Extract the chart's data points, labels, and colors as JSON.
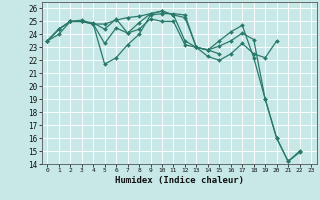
{
  "title": "",
  "xlabel": "Humidex (Indice chaleur)",
  "xlim": [
    -0.5,
    23.5
  ],
  "ylim": [
    14,
    26.5
  ],
  "yticks": [
    14,
    15,
    16,
    17,
    18,
    19,
    20,
    21,
    22,
    23,
    24,
    25,
    26
  ],
  "xticks": [
    0,
    1,
    2,
    3,
    4,
    5,
    6,
    7,
    8,
    9,
    10,
    11,
    12,
    13,
    14,
    15,
    16,
    17,
    18,
    19,
    20,
    21,
    22,
    23
  ],
  "line_color": "#2a7a6a",
  "bg_color": "#c8e8e8",
  "grid_color": "#b0d8d8",
  "lines": [
    {
      "x": [
        0,
        1,
        2,
        3,
        4,
        5,
        6,
        7,
        8,
        9,
        10,
        11,
        12,
        13,
        14,
        15,
        16,
        17,
        18,
        19,
        20,
        21,
        22
      ],
      "y": [
        23.5,
        24.4,
        25.0,
        25.0,
        24.8,
        21.7,
        22.2,
        23.2,
        24.0,
        25.5,
        25.6,
        25.6,
        25.5,
        23.0,
        22.8,
        23.1,
        23.5,
        24.1,
        23.6,
        19.0,
        16.0,
        14.2,
        14.9
      ]
    },
    {
      "x": [
        0,
        1,
        2,
        3,
        4,
        5,
        6,
        7,
        8,
        9,
        10,
        11,
        12,
        13,
        14,
        15,
        16,
        17,
        18,
        19,
        20
      ],
      "y": [
        23.5,
        24.4,
        25.0,
        25.0,
        24.8,
        23.3,
        24.5,
        24.1,
        24.4,
        25.2,
        25.0,
        25.0,
        23.2,
        23.0,
        22.3,
        22.0,
        22.5,
        23.3,
        22.5,
        22.2,
        23.5
      ]
    },
    {
      "x": [
        0,
        1,
        2,
        3,
        4,
        5,
        6,
        7,
        8,
        9,
        10,
        11,
        12,
        13,
        14,
        15
      ],
      "y": [
        23.5,
        24.0,
        25.0,
        25.1,
        24.8,
        24.8,
        25.1,
        25.3,
        25.4,
        25.6,
        25.8,
        25.5,
        25.3,
        23.0,
        22.8,
        22.5
      ]
    },
    {
      "x": [
        0,
        1,
        2,
        3,
        4,
        5,
        6,
        7,
        8,
        9,
        10,
        11,
        12,
        13,
        14,
        15,
        16,
        17,
        18,
        19,
        20,
        21,
        22
      ],
      "y": [
        23.5,
        24.4,
        25.0,
        25.0,
        24.9,
        24.4,
        25.2,
        24.1,
        24.9,
        25.6,
        25.8,
        25.5,
        23.5,
        23.0,
        22.8,
        23.5,
        24.2,
        24.7,
        22.2,
        19.0,
        16.0,
        14.2,
        15.0
      ]
    }
  ]
}
